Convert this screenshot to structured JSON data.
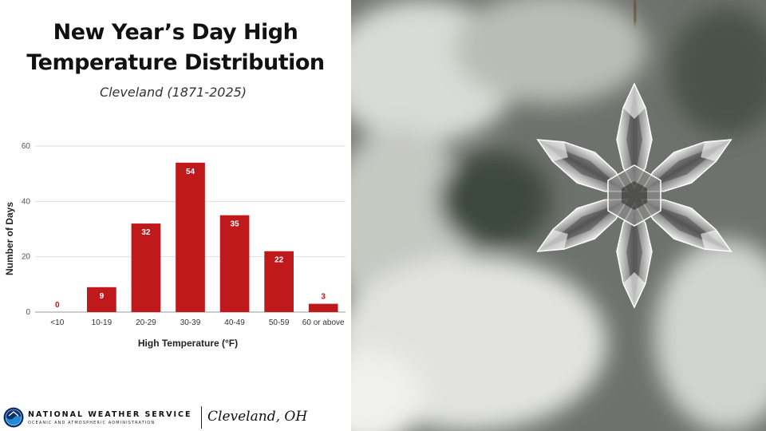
{
  "title_line1": "New Year’s Day High",
  "title_line2": "Temperature Distribution",
  "subtitle": "Cleveland (1871-2025)",
  "chart_data": {
    "type": "bar",
    "categories": [
      "<10",
      "10-19",
      "20-29",
      "30-39",
      "40-49",
      "50-59",
      "60 or above"
    ],
    "values": [
      0,
      9,
      32,
      54,
      35,
      22,
      3
    ],
    "xlabel": "High Temperature (°F)",
    "ylabel": "Number of Days",
    "ylim": [
      0,
      60
    ],
    "yticks": [
      0,
      20,
      40,
      60
    ],
    "grid": true,
    "bar_color": "#c0191c",
    "label_color": "#ffffff",
    "outside_label_color": "#c0191c"
  },
  "footer": {
    "agency_name": "NATIONAL WEATHER SERVICE",
    "agency_sub": "OCEANIC AND ATMOSPHERIC ADMINISTRATION",
    "office": "Cleveland, OH"
  },
  "colors": {
    "noaa_navy": "#0a2f6e",
    "noaa_blue": "#1f8ad8"
  },
  "photo_icon": "snowflake-ornament-photo"
}
